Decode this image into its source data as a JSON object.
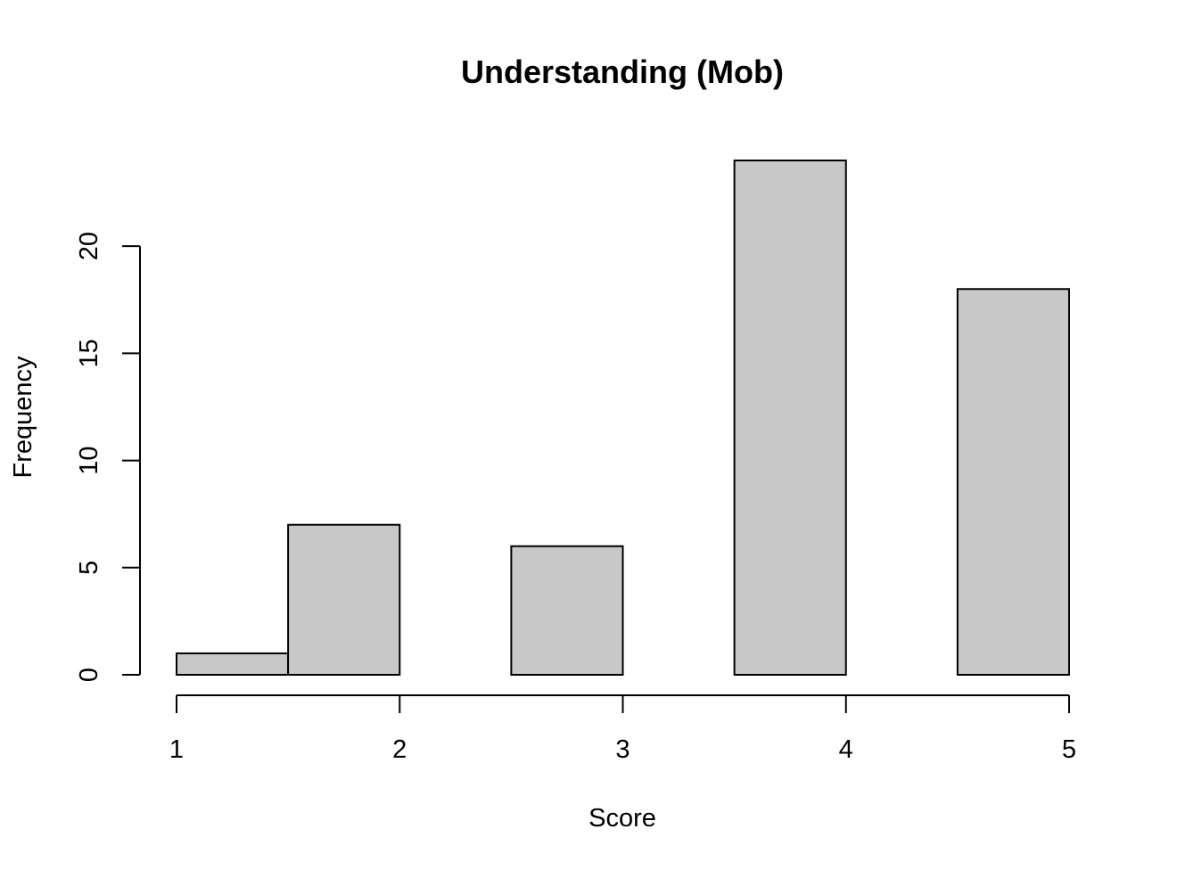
{
  "chart_data": {
    "type": "bar",
    "title": "Understanding (Mob)",
    "xlabel": "Score",
    "ylabel": "Frequency",
    "bins": [
      {
        "start": 1.0,
        "end": 1.5,
        "value": 1
      },
      {
        "start": 1.5,
        "end": 2.0,
        "value": 7
      },
      {
        "start": 2.0,
        "end": 2.5,
        "value": 0
      },
      {
        "start": 2.5,
        "end": 3.0,
        "value": 6
      },
      {
        "start": 3.0,
        "end": 3.5,
        "value": 0
      },
      {
        "start": 3.5,
        "end": 4.0,
        "value": 24
      },
      {
        "start": 4.0,
        "end": 4.5,
        "value": 0
      },
      {
        "start": 4.5,
        "end": 5.0,
        "value": 18
      }
    ],
    "xlim": [
      1,
      5
    ],
    "ylim": [
      0,
      24
    ],
    "x_ticks": [
      1,
      2,
      3,
      4,
      5
    ],
    "y_ticks": [
      0,
      5,
      10,
      15,
      20
    ],
    "grid": false,
    "bar_color": "#c8c8c8",
    "edge_color": "#000000"
  }
}
